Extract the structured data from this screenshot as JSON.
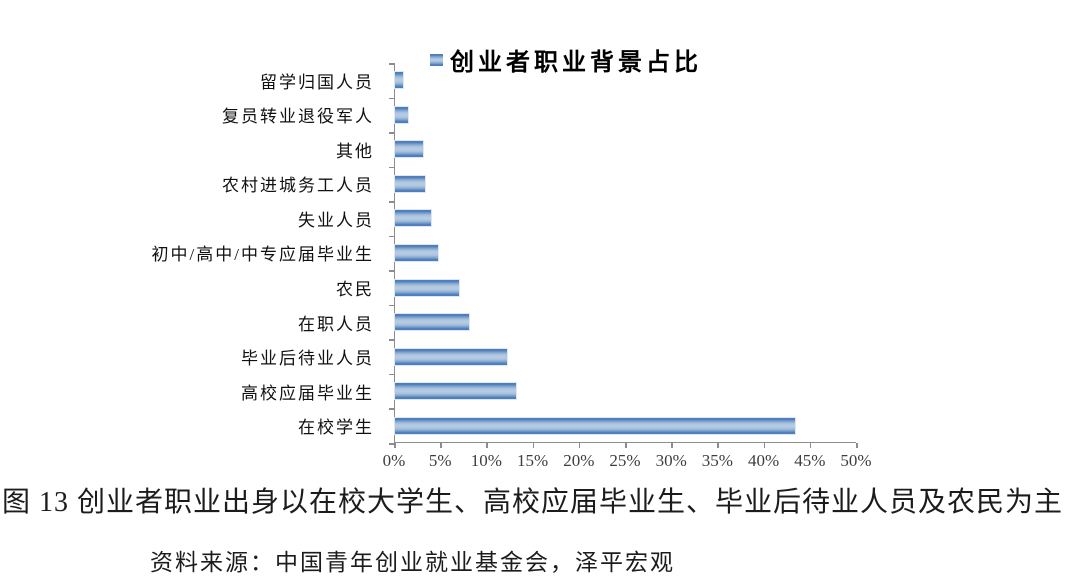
{
  "legend": {
    "label": "创业者职业背景占比"
  },
  "chart_data": {
    "type": "bar",
    "orientation": "horizontal",
    "title": "创业者职业背景占比",
    "categories": [
      "留学归国人员",
      "复员转业退役军人",
      "其他",
      "农村进城务工人员",
      "失业人员",
      "初中/高中/中专应届毕业生",
      "农民",
      "在职人员",
      "毕业后待业人员",
      "高校应届毕业生",
      "在校学生"
    ],
    "values": [
      0.9,
      1.4,
      3.0,
      3.3,
      3.9,
      4.7,
      6.9,
      8.0,
      12.1,
      13.1,
      43.3
    ],
    "unit": "%",
    "x_ticks": [
      "0%",
      "5%",
      "10%",
      "15%",
      "20%",
      "25%",
      "30%",
      "35%",
      "40%",
      "45%",
      "50%"
    ],
    "xlim": [
      0,
      50
    ],
    "grid": false,
    "legend_position": "top",
    "bar_color": "#4F81BD",
    "bar_color_light": "#B9CDE4",
    "axis_color": "#8C8C8C"
  },
  "caption": {
    "text": "图 13  创业者职业出身以在校大学生、高校应届毕业生、毕业后待业人员及农民为主"
  },
  "source": {
    "text": "资料来源：中国青年创业就业基金会，泽平宏观"
  }
}
